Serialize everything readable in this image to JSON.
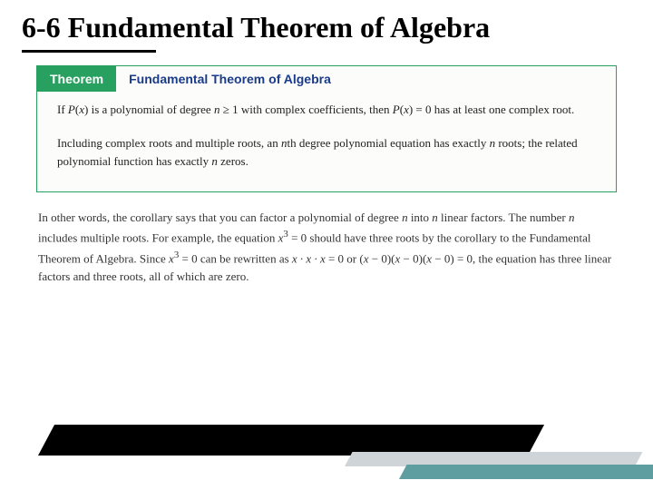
{
  "slide": {
    "title": "6-6 Fundamental Theorem of Algebra",
    "title_fontsize": 32,
    "title_color": "#000000",
    "underline_color": "#000000",
    "underline_width": 148
  },
  "theorem_box": {
    "border_color": "#28a060",
    "background": "#fcfcfa",
    "badge": {
      "label": "Theorem",
      "bg": "#28a060",
      "color": "#ffffff",
      "fontsize": 14
    },
    "heading": {
      "text": "Fundamental Theorem of Algebra",
      "color": "#1a3b8a",
      "fontsize": 14
    },
    "para1_html": "If <span class='italic math'>P</span>(<span class='italic math'>x</span>) is a polynomial of degree <span class='italic math'>n</span> ≥ 1 with complex coefficients, then <span class='italic math'>P</span>(<span class='italic math'>x</span>) = 0 has at least one complex root.",
    "para2_html": "Including complex roots and multiple roots, an <span class='italic math'>n</span>th degree polynomial equation has exactly <span class='italic math'>n</span> roots; the related polynomial function has exactly <span class='italic math'>n</span> zeros.",
    "body_fontsize": 13,
    "body_color": "#222222"
  },
  "explain": {
    "html": "In other words, the corollary says that you can factor a polynomial of degree <span class='italic math'>n</span> into <span class='italic math'>n</span> linear factors. The number <span class='italic math'>n</span> includes multiple roots. For example, the equation <span class='italic math'>x</span><sup>3</sup> = 0 should have three roots by the corollary to the Fundamental Theorem of Algebra. Since <span class='italic math'>x</span><sup>3</sup> = 0 can be rewritten as <span class='italic math'>x · x · x</span> = 0 or (<span class='italic math'>x</span> − 0)(<span class='italic math'>x</span> − 0)(<span class='italic math'>x</span> − 0) = 0, the equation has three linear factors and three roots, all of which are zero.",
    "fontsize": 13,
    "color": "#333333"
  },
  "decor": {
    "wedge_dark": "#000000",
    "wedge_gray": "#cfd4d8",
    "wedge_teal": "#5f9ea0"
  }
}
